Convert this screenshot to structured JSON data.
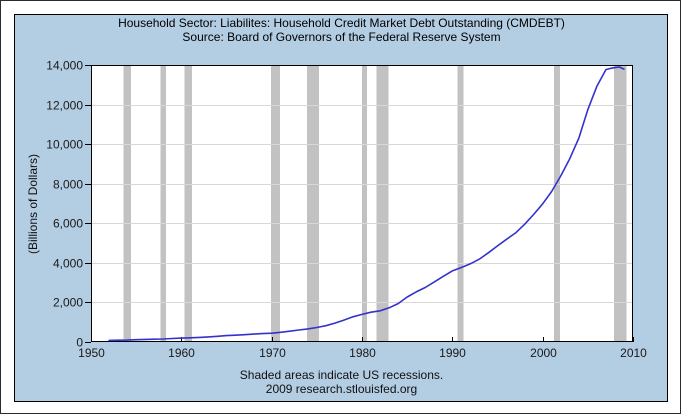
{
  "header": {
    "title": "Household Sector: Liabilites: Household Credit Market Debt Outstanding (CMDEBT)",
    "source": "Source: Board of Governors of the Federal Reserve System"
  },
  "footer": {
    "note": "Shaded areas indicate US recessions.",
    "attribution": "2009 research.stlouisfed.org"
  },
  "colors": {
    "panel_background": "#b3cde3",
    "plot_background": "#ffffff",
    "frame": "#000000",
    "gridline": "#d8d8d8",
    "recession_band": "#c2c2c2",
    "line": "#3333cc",
    "tick_text": "#1a1a1a"
  },
  "chart_data": {
    "type": "line",
    "title": "Household Sector: Liabilites: Household Credit Market Debt Outstanding (CMDEBT)",
    "subtitle": "Source: Board of Governors of the Federal Reserve System",
    "xlabel": "",
    "ylabel": "(Billions of Dollars)",
    "xlim": [
      1950,
      2010
    ],
    "ylim": [
      0,
      14000
    ],
    "x_ticks": [
      1950,
      1960,
      1970,
      1980,
      1990,
      2000,
      2010
    ],
    "y_ticks": [
      0,
      2000,
      4000,
      6000,
      8000,
      10000,
      12000,
      14000
    ],
    "grid": "horizontal",
    "legend": "none",
    "recession_bands": [
      [
        1953.58,
        1954.42
      ],
      [
        1957.67,
        1958.33
      ],
      [
        1960.33,
        1961.17
      ],
      [
        1969.92,
        1970.92
      ],
      [
        1973.92,
        1975.25
      ],
      [
        1980.0,
        1980.58
      ],
      [
        1981.58,
        1982.92
      ],
      [
        1990.58,
        1991.25
      ],
      [
        2001.25,
        2001.92
      ],
      [
        2007.92,
        2009.3
      ]
    ],
    "series": [
      {
        "name": "CMDEBT",
        "x": [
          1952,
          1953,
          1954,
          1955,
          1956,
          1957,
          1958,
          1959,
          1960,
          1961,
          1962,
          1963,
          1964,
          1965,
          1966,
          1967,
          1968,
          1969,
          1970,
          1971,
          1972,
          1973,
          1974,
          1975,
          1976,
          1977,
          1978,
          1979,
          1980,
          1981,
          1982,
          1983,
          1984,
          1985,
          1986,
          1987,
          1988,
          1989,
          1990,
          1991,
          1992,
          1993,
          1994,
          1995,
          1996,
          1997,
          1998,
          1999,
          2000,
          2001,
          2002,
          2003,
          2004,
          2005,
          2006,
          2007,
          2007.5,
          2008,
          2008.5,
          2009
        ],
        "y": [
          79,
          89,
          98,
          116,
          130,
          142,
          154,
          176,
          196,
          212,
          234,
          260,
          288,
          321,
          343,
          368,
          398,
          427,
          446,
          491,
          547,
          608,
          660,
          734,
          826,
          953,
          1108,
          1276,
          1396,
          1507,
          1576,
          1731,
          1943,
          2272,
          2531,
          2757,
          3038,
          3320,
          3592,
          3766,
          3954,
          4188,
          4514,
          4858,
          5191,
          5513,
          5951,
          6444,
          6987,
          7612,
          8388,
          9267,
          10298,
          11742,
          12930,
          13765,
          13830,
          13870,
          13899,
          13795
        ]
      }
    ]
  }
}
